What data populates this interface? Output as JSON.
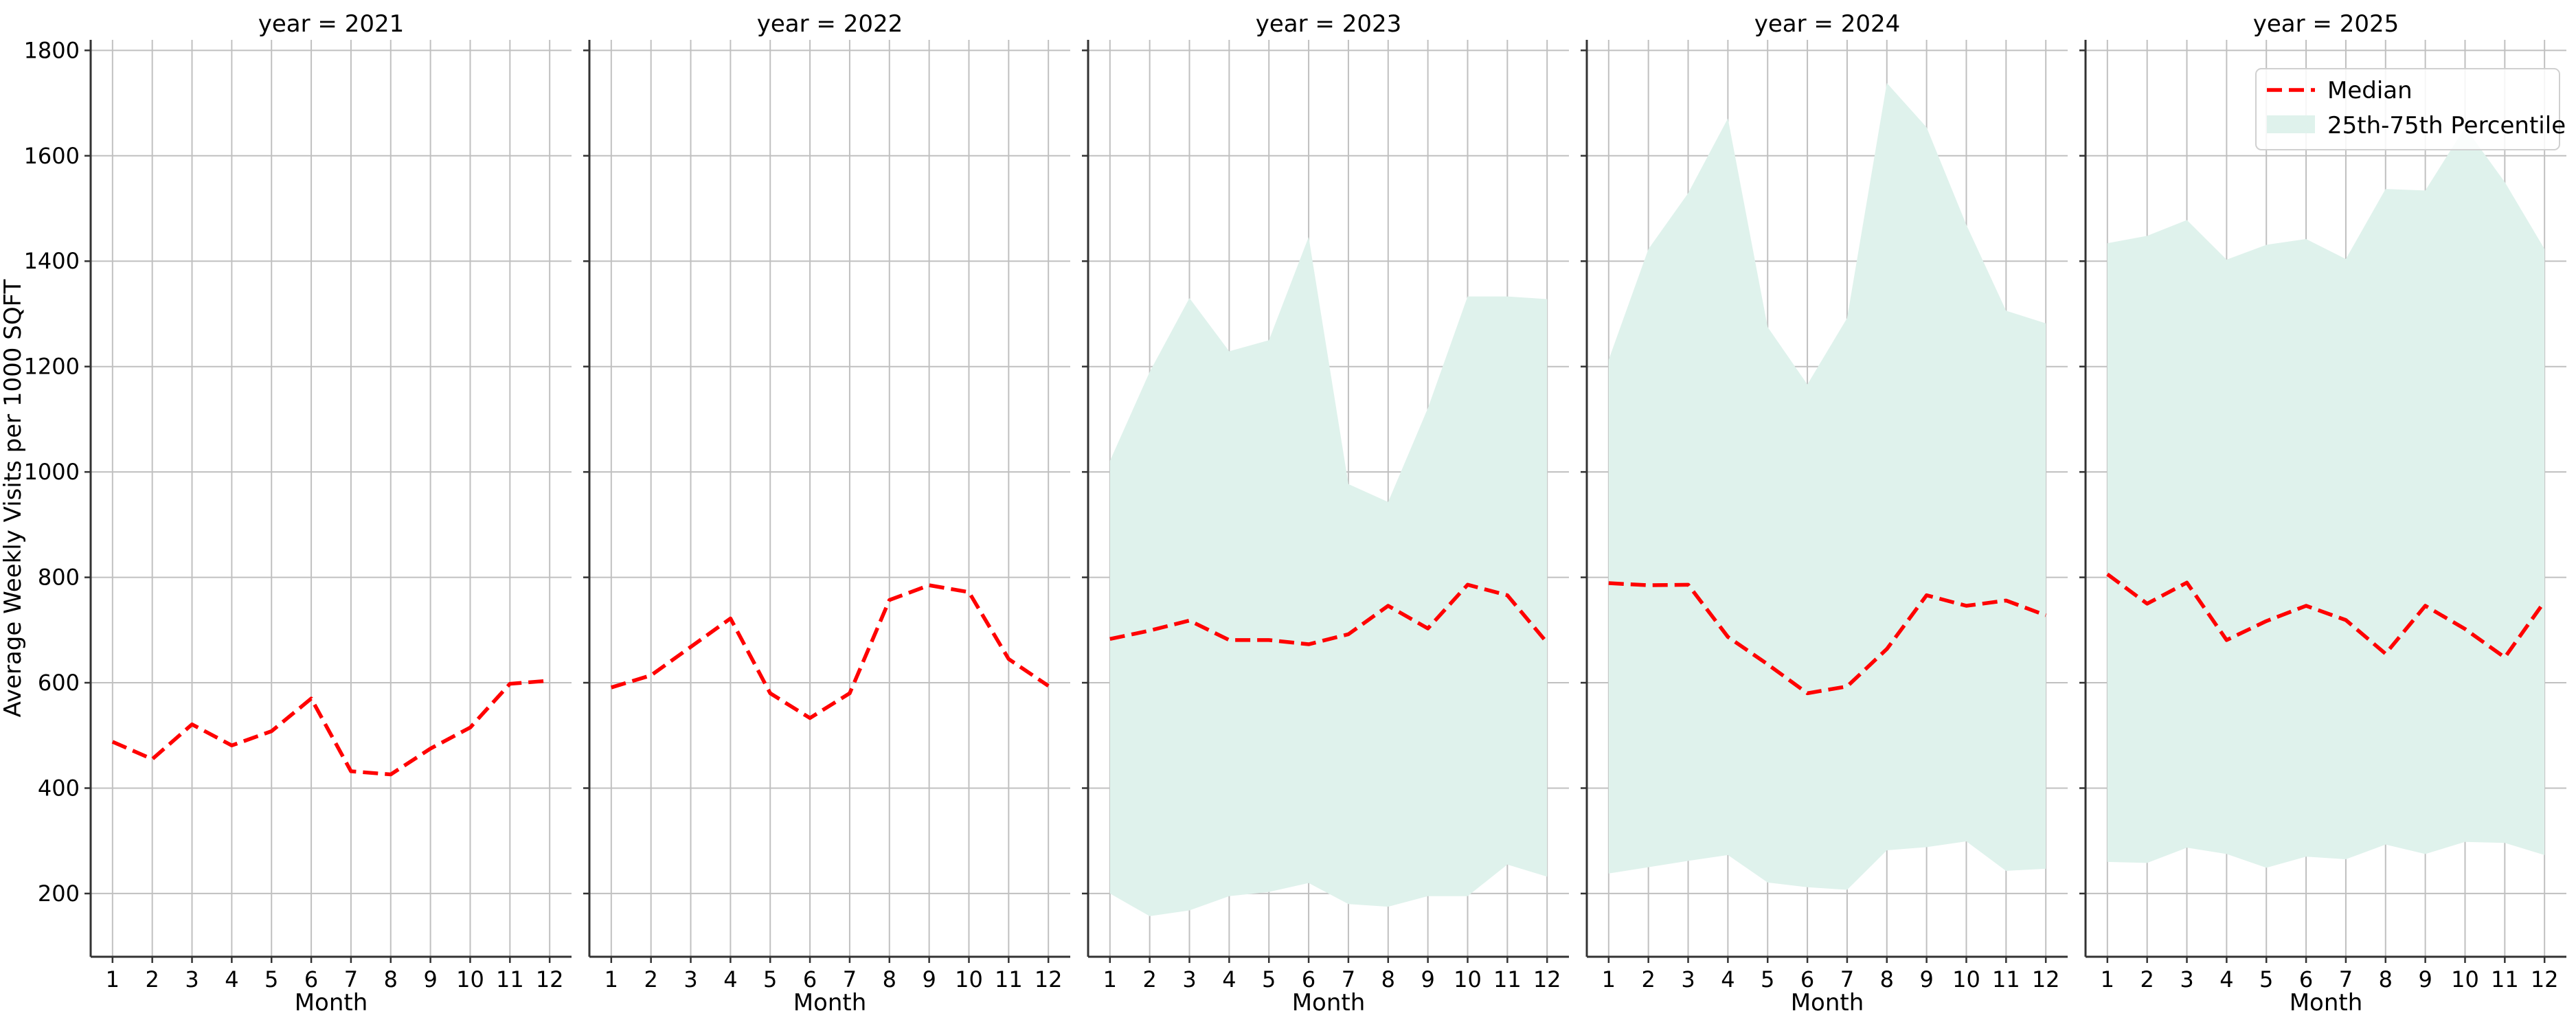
{
  "chart_data": {
    "type": "line",
    "ylabel": "Average Weekly Visits per 1000 SQFT",
    "xlabel": "Month",
    "ylim": [
      80,
      1820
    ],
    "yticks": [
      200,
      400,
      600,
      800,
      1000,
      1200,
      1400,
      1600,
      1800
    ],
    "xticks": [
      1,
      2,
      3,
      4,
      5,
      6,
      7,
      8,
      9,
      10,
      11,
      12
    ],
    "grid": true,
    "shared_y": true,
    "legend": {
      "placement": "top-right of last panel",
      "entries": [
        "Median",
        "25th-75th Percentile"
      ]
    },
    "colors": {
      "median": "#ff0000",
      "band": "#dff2ec",
      "grid": "#c0c0c0",
      "axis": "#333333"
    },
    "panels": [
      {
        "title": "year = 2021",
        "median": [
          488,
          455,
          521,
          481,
          508,
          570,
          432,
          426,
          475,
          515,
          598,
          604
        ],
        "p25": null,
        "p75": null
      },
      {
        "title": "year = 2022",
        "median": [
          591,
          614,
          668,
          722,
          580,
          533,
          580,
          757,
          785,
          772,
          645,
          594
        ],
        "p25": null,
        "p75": null
      },
      {
        "title": "year = 2023",
        "median": [
          683,
          699,
          718,
          681,
          681,
          673,
          692,
          746,
          703,
          786,
          766,
          676
        ],
        "p25": [
          200,
          157,
          168,
          195,
          203,
          220,
          180,
          175,
          195,
          195,
          255,
          232
        ],
        "p75": [
          1021,
          1190,
          1330,
          1229,
          1250,
          1446,
          977,
          943,
          1121,
          1333,
          1333,
          1328
        ]
      },
      {
        "title": "year = 2024",
        "median": [
          789,
          785,
          786,
          687,
          635,
          580,
          593,
          664,
          766,
          746,
          756,
          728
        ],
        "p25": [
          238,
          250,
          262,
          273,
          221,
          212,
          207,
          282,
          288,
          299,
          243,
          247
        ],
        "p75": [
          1213,
          1423,
          1529,
          1671,
          1275,
          1166,
          1292,
          1738,
          1654,
          1469,
          1306,
          1282
        ]
      },
      {
        "title": "year = 2025",
        "median": [
          806,
          750,
          790,
          681,
          717,
          746,
          719,
          655,
          746,
          702,
          648,
          754
        ],
        "p25": [
          260,
          258,
          287,
          275,
          249,
          270,
          265,
          293,
          275,
          298,
          296,
          273
        ],
        "p75": [
          1434,
          1448,
          1478,
          1403,
          1431,
          1442,
          1404,
          1537,
          1534,
          1654,
          1550,
          1423
        ]
      }
    ]
  }
}
